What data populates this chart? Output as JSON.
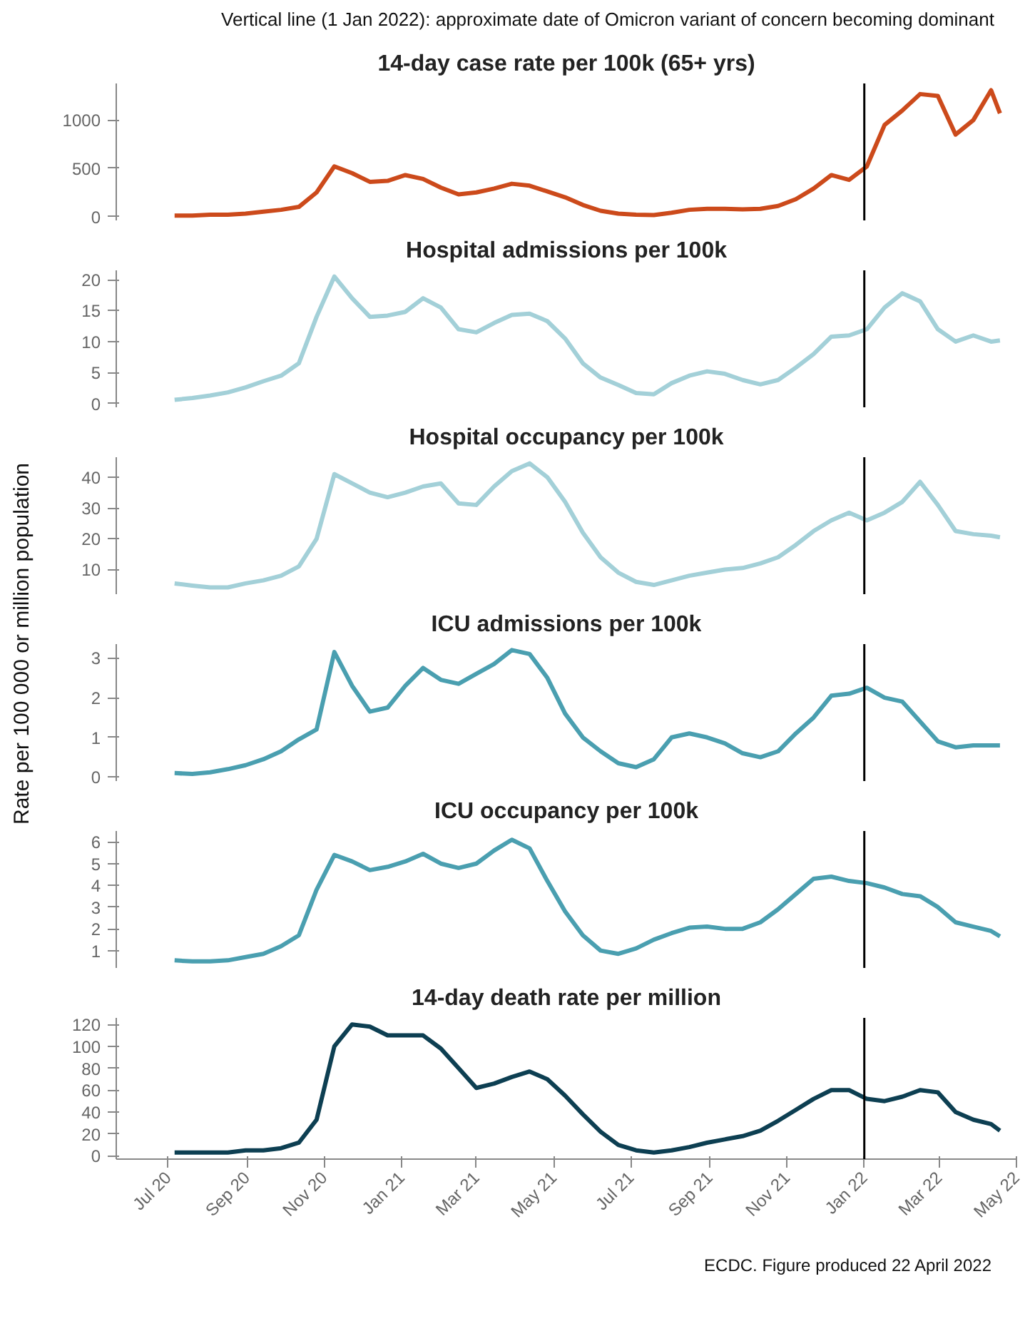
{
  "chart_data": [
    {
      "type": "line",
      "title": "14-day case rate per 100k (65+ yrs)",
      "annotations": [
        "Vertical line (1 Jan 2022): approximate date of Omicron variant of concern becoming dominant"
      ],
      "x": [
        "2020-07-06",
        "2020-07-20",
        "2020-08-03",
        "2020-08-17",
        "2020-08-31",
        "2020-09-14",
        "2020-09-28",
        "2020-10-12",
        "2020-10-26",
        "2020-11-09",
        "2020-11-23",
        "2020-12-07",
        "2020-12-21",
        "2021-01-04",
        "2021-01-18",
        "2021-02-01",
        "2021-02-15",
        "2021-03-01",
        "2021-03-15",
        "2021-03-29",
        "2021-04-12",
        "2021-04-26",
        "2021-05-10",
        "2021-05-24",
        "2021-06-07",
        "2021-06-21",
        "2021-07-05",
        "2021-07-19",
        "2021-08-02",
        "2021-08-16",
        "2021-08-30",
        "2021-09-13",
        "2021-09-27",
        "2021-10-11",
        "2021-10-25",
        "2021-11-08",
        "2021-11-22",
        "2021-12-06",
        "2021-12-20",
        "2022-01-03",
        "2022-01-17",
        "2022-01-31",
        "2022-02-14",
        "2022-02-28",
        "2022-03-14",
        "2022-03-28",
        "2022-04-11",
        "2022-04-18"
      ],
      "series": [
        {
          "color": "#cc4a1b",
          "values": [
            10,
            10,
            20,
            20,
            30,
            50,
            70,
            100,
            250,
            520,
            450,
            360,
            370,
            430,
            390,
            300,
            230,
            250,
            290,
            340,
            320,
            260,
            200,
            120,
            60,
            30,
            20,
            15,
            40,
            70,
            80,
            80,
            75,
            80,
            110,
            180,
            290,
            430,
            380,
            520,
            950,
            1100,
            1270,
            1250,
            850,
            1000,
            1310,
            1070
          ]
        }
      ],
      "xlim": [
        "2020-05-21",
        "2022-05-01"
      ],
      "ylim": [
        -40,
        1380
      ],
      "yticks": [
        0,
        500,
        1000
      ],
      "tick_labels": "y",
      "ref_lines": [
        {
          "axis": "x",
          "value": "2022-01-01",
          "color": "#000000"
        }
      ]
    },
    {
      "type": "line",
      "title": "Hospital admissions per 100k",
      "x": [
        "2020-07-06",
        "2020-07-20",
        "2020-08-03",
        "2020-08-17",
        "2020-08-31",
        "2020-09-14",
        "2020-09-28",
        "2020-10-12",
        "2020-10-26",
        "2020-11-09",
        "2020-11-23",
        "2020-12-07",
        "2020-12-21",
        "2021-01-04",
        "2021-01-18",
        "2021-02-01",
        "2021-02-15",
        "2021-03-01",
        "2021-03-15",
        "2021-03-29",
        "2021-04-12",
        "2021-04-26",
        "2021-05-10",
        "2021-05-24",
        "2021-06-07",
        "2021-06-21",
        "2021-07-05",
        "2021-07-19",
        "2021-08-02",
        "2021-08-16",
        "2021-08-30",
        "2021-09-13",
        "2021-09-27",
        "2021-10-11",
        "2021-10-25",
        "2021-11-08",
        "2021-11-22",
        "2021-12-06",
        "2021-12-20",
        "2022-01-03",
        "2022-01-17",
        "2022-01-31",
        "2022-02-14",
        "2022-02-28",
        "2022-03-14",
        "2022-03-28",
        "2022-04-11",
        "2022-04-18"
      ],
      "series": [
        {
          "color": "#a3d0d8",
          "values": [
            0.6,
            0.9,
            1.3,
            1.8,
            2.6,
            3.6,
            4.5,
            6.5,
            14,
            20.5,
            17,
            14,
            14.2,
            14.8,
            17,
            15.5,
            12,
            11.5,
            13,
            14.3,
            14.5,
            13.3,
            10.5,
            6.5,
            4.2,
            3,
            1.7,
            1.5,
            3.3,
            4.5,
            5.2,
            4.8,
            3.8,
            3.1,
            3.8,
            5.8,
            8,
            10.8,
            11,
            12,
            15.5,
            17.8,
            16.5,
            12,
            10,
            11,
            10,
            10.2
          ]
        }
      ],
      "xlim": [
        "2020-05-21",
        "2022-05-01"
      ],
      "ylim": [
        -0.6,
        21.5
      ],
      "yticks": [
        0,
        5,
        10,
        15,
        20
      ],
      "tick_labels": "y",
      "ref_lines": [
        {
          "axis": "x",
          "value": "2022-01-01",
          "color": "#000000"
        }
      ]
    },
    {
      "type": "line",
      "title": "Hospital occupancy per 100k",
      "x": [
        "2020-07-06",
        "2020-07-20",
        "2020-08-03",
        "2020-08-17",
        "2020-08-31",
        "2020-09-14",
        "2020-09-28",
        "2020-10-12",
        "2020-10-26",
        "2020-11-09",
        "2020-11-23",
        "2020-12-07",
        "2020-12-21",
        "2021-01-04",
        "2021-01-18",
        "2021-02-01",
        "2021-02-15",
        "2021-03-01",
        "2021-03-15",
        "2021-03-29",
        "2021-04-12",
        "2021-04-26",
        "2021-05-10",
        "2021-05-24",
        "2021-06-07",
        "2021-06-21",
        "2021-07-05",
        "2021-07-19",
        "2021-08-02",
        "2021-08-16",
        "2021-08-30",
        "2021-09-13",
        "2021-09-27",
        "2021-10-11",
        "2021-10-25",
        "2021-11-08",
        "2021-11-22",
        "2021-12-06",
        "2021-12-20",
        "2022-01-03",
        "2022-01-17",
        "2022-01-31",
        "2022-02-14",
        "2022-02-28",
        "2022-03-14",
        "2022-03-28",
        "2022-04-11",
        "2022-04-18"
      ],
      "series": [
        {
          "color": "#a3d0d8",
          "values": [
            5.5,
            4.8,
            4.2,
            4.2,
            5.5,
            6.5,
            8,
            11,
            20,
            41,
            38,
            35,
            33.5,
            35,
            37,
            38,
            31.5,
            31,
            37,
            42,
            44.5,
            40,
            32,
            22,
            14,
            9,
            6,
            5,
            6.5,
            8,
            9,
            10,
            10.5,
            12,
            14,
            18,
            22.5,
            26,
            28.5,
            26,
            28.5,
            32,
            38.5,
            31,
            22.5,
            21.5,
            21,
            20.5
          ]
        }
      ],
      "xlim": [
        "2020-05-21",
        "2022-05-01"
      ],
      "ylim": [
        2,
        46.5
      ],
      "yticks": [
        10,
        20,
        30,
        40
      ],
      "tick_labels": "y",
      "ref_lines": [
        {
          "axis": "x",
          "value": "2022-01-01",
          "color": "#000000"
        }
      ]
    },
    {
      "type": "line",
      "title": "ICU admissions per 100k",
      "ylabel": "Rate per 100 000 or million population",
      "x": [
        "2020-07-06",
        "2020-07-20",
        "2020-08-03",
        "2020-08-17",
        "2020-08-31",
        "2020-09-14",
        "2020-09-28",
        "2020-10-12",
        "2020-10-26",
        "2020-11-09",
        "2020-11-23",
        "2020-12-07",
        "2020-12-21",
        "2021-01-04",
        "2021-01-18",
        "2021-02-01",
        "2021-02-15",
        "2021-03-01",
        "2021-03-15",
        "2021-03-29",
        "2021-04-12",
        "2021-04-26",
        "2021-05-10",
        "2021-05-24",
        "2021-06-07",
        "2021-06-21",
        "2021-07-05",
        "2021-07-19",
        "2021-08-02",
        "2021-08-16",
        "2021-08-30",
        "2021-09-13",
        "2021-09-27",
        "2021-10-11",
        "2021-10-25",
        "2021-11-08",
        "2021-11-22",
        "2021-12-06",
        "2021-12-20",
        "2022-01-03",
        "2022-01-17",
        "2022-01-31",
        "2022-02-14",
        "2022-02-28",
        "2022-03-14",
        "2022-03-28",
        "2022-04-11",
        "2022-04-18"
      ],
      "series": [
        {
          "color": "#4a9fb0",
          "values": [
            0.1,
            0.08,
            0.12,
            0.2,
            0.3,
            0.45,
            0.65,
            0.95,
            1.2,
            3.15,
            2.3,
            1.65,
            1.75,
            2.3,
            2.75,
            2.45,
            2.35,
            2.6,
            2.85,
            3.2,
            3.1,
            2.5,
            1.6,
            1,
            0.65,
            0.35,
            0.25,
            0.45,
            1,
            1.1,
            1,
            0.85,
            0.6,
            0.5,
            0.65,
            1.1,
            1.5,
            2.05,
            2.1,
            2.25,
            2,
            1.9,
            1.4,
            0.9,
            0.75,
            0.8,
            0.8,
            0.8
          ]
        }
      ],
      "xlim": [
        "2020-05-21",
        "2022-05-01"
      ],
      "ylim": [
        -0.1,
        3.35
      ],
      "yticks": [
        0,
        1,
        2,
        3
      ],
      "tick_labels": "y",
      "ref_lines": [
        {
          "axis": "x",
          "value": "2022-01-01",
          "color": "#000000"
        }
      ]
    },
    {
      "type": "line",
      "title": "ICU occupancy per 100k",
      "x": [
        "2020-07-06",
        "2020-07-20",
        "2020-08-03",
        "2020-08-17",
        "2020-08-31",
        "2020-09-14",
        "2020-09-28",
        "2020-10-12",
        "2020-10-26",
        "2020-11-09",
        "2020-11-23",
        "2020-12-07",
        "2020-12-21",
        "2021-01-04",
        "2021-01-18",
        "2021-02-01",
        "2021-02-15",
        "2021-03-01",
        "2021-03-15",
        "2021-03-29",
        "2021-04-12",
        "2021-04-26",
        "2021-05-10",
        "2021-05-24",
        "2021-06-07",
        "2021-06-21",
        "2021-07-05",
        "2021-07-19",
        "2021-08-02",
        "2021-08-16",
        "2021-08-30",
        "2021-09-13",
        "2021-09-27",
        "2021-10-11",
        "2021-10-25",
        "2021-11-08",
        "2021-11-22",
        "2021-12-06",
        "2021-12-20",
        "2022-01-03",
        "2022-01-17",
        "2022-01-31",
        "2022-02-14",
        "2022-02-28",
        "2022-03-14",
        "2022-03-28",
        "2022-04-11",
        "2022-04-18"
      ],
      "series": [
        {
          "color": "#4a9fb0",
          "values": [
            0.55,
            0.5,
            0.5,
            0.55,
            0.7,
            0.85,
            1.2,
            1.7,
            3.8,
            5.4,
            5.1,
            4.7,
            4.85,
            5.1,
            5.45,
            5,
            4.8,
            5,
            5.6,
            6.1,
            5.7,
            4.2,
            2.8,
            1.7,
            1,
            0.85,
            1.1,
            1.5,
            1.8,
            2.05,
            2.1,
            2,
            2,
            2.3,
            2.9,
            3.6,
            4.3,
            4.4,
            4.2,
            4.1,
            3.9,
            3.6,
            3.5,
            3,
            2.3,
            2.1,
            1.9,
            1.65
          ]
        }
      ],
      "xlim": [
        "2020-05-21",
        "2022-05-01"
      ],
      "ylim": [
        0.2,
        6.5
      ],
      "yticks": [
        1,
        2,
        3,
        4,
        5,
        6
      ],
      "tick_labels": "y",
      "ref_lines": [
        {
          "axis": "x",
          "value": "2022-01-01",
          "color": "#000000"
        }
      ]
    },
    {
      "type": "line",
      "title": "14-day death rate per million",
      "annotations": [
        "ECDC. Figure produced 22 April 2022"
      ],
      "x": [
        "2020-07-06",
        "2020-07-20",
        "2020-08-03",
        "2020-08-17",
        "2020-08-31",
        "2020-09-14",
        "2020-09-28",
        "2020-10-12",
        "2020-10-26",
        "2020-11-09",
        "2020-11-23",
        "2020-12-07",
        "2020-12-21",
        "2021-01-04",
        "2021-01-18",
        "2021-02-01",
        "2021-02-15",
        "2021-03-01",
        "2021-03-15",
        "2021-03-29",
        "2021-04-12",
        "2021-04-26",
        "2021-05-10",
        "2021-05-24",
        "2021-06-07",
        "2021-06-21",
        "2021-07-05",
        "2021-07-19",
        "2021-08-02",
        "2021-08-16",
        "2021-08-30",
        "2021-09-13",
        "2021-09-27",
        "2021-10-11",
        "2021-10-25",
        "2021-11-08",
        "2021-11-22",
        "2021-12-06",
        "2021-12-20",
        "2022-01-03",
        "2022-01-17",
        "2022-01-31",
        "2022-02-14",
        "2022-02-28",
        "2022-03-14",
        "2022-03-28",
        "2022-04-11",
        "2022-04-18"
      ],
      "series": [
        {
          "color": "#0d3f52",
          "values": [
            3,
            3,
            3,
            3,
            5,
            5,
            7,
            12,
            33,
            100,
            120,
            118,
            110,
            110,
            110,
            98,
            80,
            62,
            66,
            72,
            77,
            70,
            55,
            38,
            22,
            10,
            5,
            3,
            5,
            8,
            12,
            15,
            18,
            23,
            32,
            42,
            52,
            60,
            60,
            52,
            50,
            54,
            60,
            58,
            40,
            33,
            29,
            23
          ]
        }
      ],
      "xlim": [
        "2020-05-21",
        "2022-05-01"
      ],
      "ylim": [
        -3,
        126
      ],
      "yticks": [
        0,
        20,
        40,
        60,
        80,
        100,
        120
      ],
      "xticks": [
        {
          "value": "2020-07-01",
          "label": "Jul 20"
        },
        {
          "value": "2020-09-01",
          "label": "Sep 20"
        },
        {
          "value": "2020-11-01",
          "label": "Nov 20"
        },
        {
          "value": "2021-01-01",
          "label": "Jan 21"
        },
        {
          "value": "2021-03-01",
          "label": "Mar 21"
        },
        {
          "value": "2021-05-01",
          "label": "May 21"
        },
        {
          "value": "2021-07-01",
          "label": "Jul 21"
        },
        {
          "value": "2021-09-01",
          "label": "Sep 21"
        },
        {
          "value": "2021-11-01",
          "label": "Nov 21"
        },
        {
          "value": "2022-01-01",
          "label": "Jan 22"
        },
        {
          "value": "2022-03-01",
          "label": "Mar 22"
        },
        {
          "value": "2022-05-01",
          "label": "May 22"
        }
      ],
      "ref_lines": [
        {
          "axis": "x",
          "value": "2022-01-01",
          "color": "#000000"
        }
      ]
    }
  ]
}
